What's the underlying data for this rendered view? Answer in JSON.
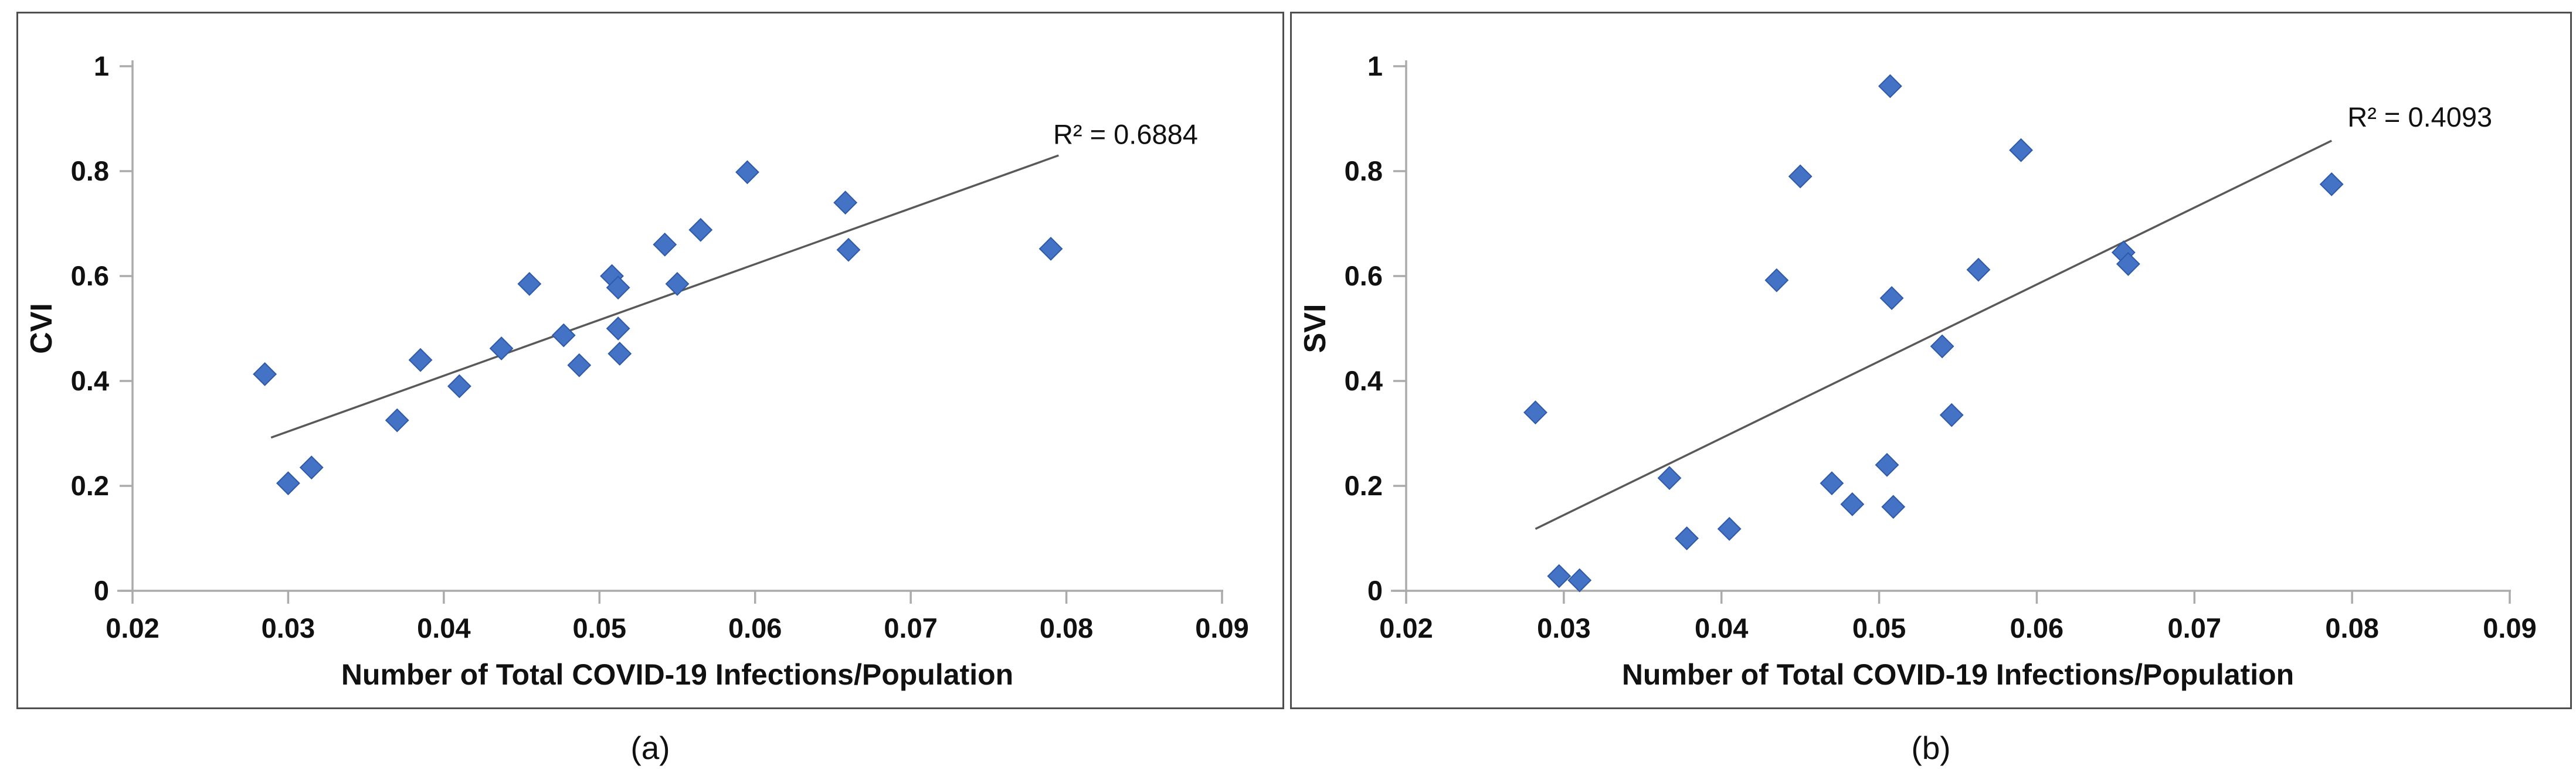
{
  "figure": {
    "background": "#ffffff",
    "panel_border_color": "#4f4f4f",
    "marker_color": "#4472C4",
    "marker_edge_color": "#2E5AA8",
    "trendline_color": "#595959",
    "axis_color": "#ABABAB",
    "text_color": "#111111"
  },
  "chart_data": [
    {
      "id": "a",
      "type": "scatter",
      "caption": "(a)",
      "x_axis_title": "Number of Total COVID-19 Infections/Population",
      "y_axis_title": "CVI",
      "r_squared_label": "R² = 0.6884",
      "r_squared_pos": [
        0.0838,
        0.852
      ],
      "x_ticks": [
        "0.02",
        "0.03",
        "0.04",
        "0.05",
        "0.06",
        "0.07",
        "0.08",
        "0.09"
      ],
      "y_ticks": [
        "0",
        "0.2",
        "0.4",
        "0.6",
        "0.8",
        "1"
      ],
      "xlim": [
        0.02,
        0.09
      ],
      "ylim": [
        0,
        1
      ],
      "grid": false,
      "legend": "none",
      "points": [
        [
          0.0285,
          0.413
        ],
        [
          0.03,
          0.205
        ],
        [
          0.0315,
          0.235
        ],
        [
          0.037,
          0.325
        ],
        [
          0.0385,
          0.44
        ],
        [
          0.041,
          0.39
        ],
        [
          0.0437,
          0.462
        ],
        [
          0.0455,
          0.585
        ],
        [
          0.0477,
          0.487
        ],
        [
          0.0487,
          0.43
        ],
        [
          0.0508,
          0.6
        ],
        [
          0.0512,
          0.578
        ],
        [
          0.0512,
          0.5
        ],
        [
          0.0513,
          0.452
        ],
        [
          0.0542,
          0.66
        ],
        [
          0.055,
          0.585
        ],
        [
          0.0565,
          0.688
        ],
        [
          0.0595,
          0.798
        ],
        [
          0.0658,
          0.74
        ],
        [
          0.066,
          0.65
        ],
        [
          0.079,
          0.652
        ]
      ],
      "trendline": {
        "x1": 0.0289,
        "y1": 0.292,
        "x2": 0.0795,
        "y2": 0.83
      }
    },
    {
      "id": "b",
      "type": "scatter",
      "caption": "(b)",
      "x_axis_title": "Number of Total COVID-19 Infections/Population",
      "y_axis_title": "SVI",
      "r_squared_label": "R² = 0.4093",
      "r_squared_pos": [
        0.0843,
        0.885
      ],
      "x_ticks": [
        "0.02",
        "0.03",
        "0.04",
        "0.05",
        "0.06",
        "0.07",
        "0.08",
        "0.09"
      ],
      "y_ticks": [
        "0",
        "0.2",
        "0.4",
        "0.6",
        "0.8",
        "1"
      ],
      "xlim": [
        0.02,
        0.09
      ],
      "ylim": [
        0,
        1
      ],
      "grid": false,
      "legend": "none",
      "points": [
        [
          0.0282,
          0.34
        ],
        [
          0.0297,
          0.028
        ],
        [
          0.031,
          0.02
        ],
        [
          0.0367,
          0.215
        ],
        [
          0.0378,
          0.1
        ],
        [
          0.0405,
          0.118
        ],
        [
          0.0435,
          0.592
        ],
        [
          0.045,
          0.79
        ],
        [
          0.047,
          0.205
        ],
        [
          0.0483,
          0.165
        ],
        [
          0.0505,
          0.24
        ],
        [
          0.0507,
          0.962
        ],
        [
          0.0508,
          0.558
        ],
        [
          0.0509,
          0.16
        ],
        [
          0.054,
          0.466
        ],
        [
          0.0546,
          0.335
        ],
        [
          0.0563,
          0.612
        ],
        [
          0.059,
          0.84
        ],
        [
          0.0655,
          0.645
        ],
        [
          0.0658,
          0.623
        ],
        [
          0.0787,
          0.775
        ]
      ],
      "trendline": {
        "x1": 0.0282,
        "y1": 0.118,
        "x2": 0.0787,
        "y2": 0.858
      }
    }
  ]
}
